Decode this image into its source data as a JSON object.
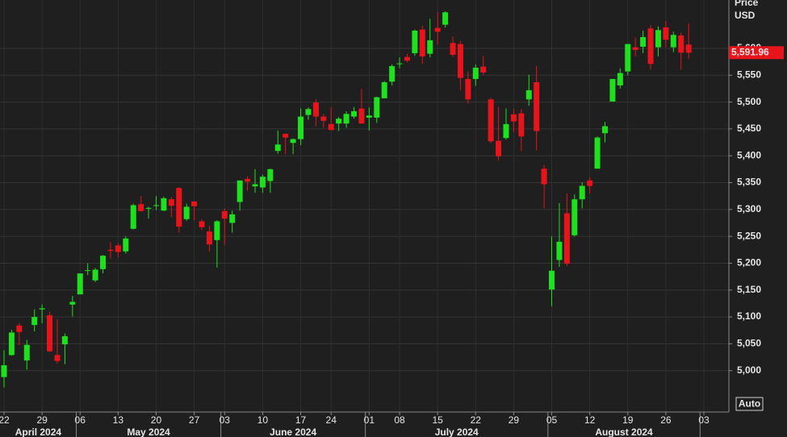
{
  "chart_data": {
    "type": "candlestick",
    "y_label": "Price",
    "y_unit": "USD",
    "categories": [
      "22",
      null,
      null,
      null,
      null,
      "29",
      null,
      null,
      null,
      null,
      "06",
      null,
      null,
      null,
      null,
      "13",
      null,
      null,
      null,
      null,
      "20",
      null,
      null,
      null,
      null,
      "27",
      null,
      null,
      null,
      "03",
      null,
      null,
      null,
      null,
      "10",
      null,
      null,
      null,
      null,
      "17",
      null,
      null,
      null,
      "24",
      null,
      null,
      null,
      null,
      "01",
      null,
      null,
      null,
      "08",
      null,
      null,
      null,
      null,
      "15",
      null,
      null,
      null,
      null,
      "22",
      null,
      null,
      null,
      null,
      "29",
      null,
      null,
      null,
      null,
      "05",
      null,
      null,
      null,
      null,
      "12",
      null,
      null,
      null,
      null,
      "19",
      null,
      null,
      null,
      null,
      "26",
      null,
      null,
      null,
      null,
      "03"
    ],
    "months": [
      "April 2024",
      "May 2024",
      "June 2024",
      "July 2024",
      "August 2024"
    ],
    "open": [
      4988,
      5029,
      5084,
      5019,
      5085,
      5114,
      5103,
      5029,
      5049,
      5123,
      5142,
      5187,
      5168,
      5189,
      5225,
      5233,
      5222,
      5264,
      5310,
      5303,
      5308,
      5298,
      5319,
      5340,
      5282,
      5315,
      5278,
      5259,
      5243,
      5297,
      5275,
      5314,
      5357,
      5343,
      5341,
      5353,
      5409,
      5441,
      5424,
      5431,
      5476,
      5499,
      5473,
      5459,
      5460,
      5460,
      5473,
      5488,
      5471,
      5471,
      5507,
      5538,
      5572,
      5584,
      5591,
      5635,
      5590,
      5638,
      5644,
      5610,
      5608,
      5543,
      5543,
      5566,
      5505,
      5428,
      5433,
      5477,
      5479,
      5505,
      5537,
      5376,
      5151,
      5206,
      5293,
      5252,
      5319,
      5354,
      5376,
      5442,
      5501,
      5531,
      5557,
      5602,
      5603,
      5637,
      5602,
      5639,
      5602,
      5624,
      5607,
      null,
      null
    ],
    "high": [
      5038,
      5076,
      5089,
      5057,
      5114,
      5123,
      5110,
      5096,
      5069,
      5139,
      5181,
      5200,
      5191,
      5215,
      5239,
      5237,
      5250,
      5311,
      5325,
      5305,
      5325,
      5324,
      5323,
      5342,
      5311,
      5315,
      5282,
      5270,
      5280,
      5302,
      5298,
      5354,
      5362,
      5375,
      5365,
      5376,
      5447,
      5441,
      5432,
      5488,
      5490,
      5505,
      5478,
      5490,
      5472,
      5483,
      5491,
      5524,
      5490,
      5510,
      5539,
      5570,
      5583,
      5590,
      5635,
      5642,
      5655,
      5667,
      5669,
      5622,
      5614,
      5557,
      5570,
      5586,
      5508,
      5491,
      5488,
      5487,
      5487,
      5551,
      5567,
      5383,
      5250,
      5312,
      5330,
      5328,
      5351,
      5360,
      5436,
      5463,
      5543,
      5563,
      5608,
      5620,
      5633,
      5643,
      5641,
      5651,
      5631,
      5629,
      5646,
      null,
      null
    ],
    "low": [
      4969,
      5028,
      5047,
      5002,
      5073,
      5088,
      5035,
      5013,
      5012,
      5101,
      5142,
      5178,
      5165,
      5181,
      5209,
      5211,
      5218,
      5263,
      5296,
      5283,
      5299,
      5297,
      5286,
      5257,
      5279,
      5280,
      5262,
      5222,
      5192,
      5234,
      5257,
      5298,
      5335,
      5331,
      5331,
      5331,
      5404,
      5403,
      5403,
      5420,
      5467,
      5455,
      5452,
      5447,
      5446,
      5452,
      5469,
      5460,
      5447,
      5461,
      5507,
      5531,
      5563,
      5574,
      5586,
      5571,
      5583,
      5607,
      5639,
      5584,
      5522,
      5497,
      5530,
      5550,
      5424,
      5391,
      5430,
      5444,
      5409,
      5493,
      5410,
      5302,
      5120,
      5193,
      5195,
      5250,
      5302,
      5330,
      5376,
      5425,
      5501,
      5525,
      5550,
      5585,
      5591,
      5560,
      5585,
      5602,
      5593,
      5560,
      5581,
      null,
      null
    ],
    "close": [
      5010,
      5071,
      5072,
      5048,
      5100,
      5116,
      5036,
      5018,
      5064,
      5128,
      5181,
      5187,
      5188,
      5214,
      5223,
      5221,
      5246,
      5308,
      5297,
      5303,
      5308,
      5321,
      5307,
      5268,
      5305,
      5306,
      5267,
      5235,
      5278,
      5283,
      5291,
      5354,
      5352,
      5347,
      5361,
      5375,
      5421,
      5434,
      5431,
      5473,
      5487,
      5473,
      5465,
      5448,
      5469,
      5478,
      5483,
      5460,
      5475,
      5509,
      5537,
      5567,
      5572,
      5577,
      5633,
      5585,
      5615,
      5631,
      5667,
      5588,
      5545,
      5505,
      5564,
      5555,
      5427,
      5399,
      5459,
      5464,
      5436,
      5522,
      5446,
      5347,
      5186,
      5240,
      5199,
      5319,
      5344,
      5344,
      5434,
      5455,
      5543,
      5554,
      5608,
      5597,
      5621,
      5571,
      5634,
      5616,
      5625,
      5592,
      5591.96,
      null,
      null
    ],
    "last_value_label": "5,591.96",
    "colors": {
      "up": "#1fe01f",
      "down": "#e8141c"
    },
    "ylim": [
      4923,
      5690
    ],
    "yticks": [
      {
        "value": 5000,
        "label": "5,000"
      },
      {
        "value": 5050,
        "label": "5,050"
      },
      {
        "value": 5100,
        "label": "5,100"
      },
      {
        "value": 5150,
        "label": "5,150"
      },
      {
        "value": 5200,
        "label": "5,200"
      },
      {
        "value": 5250,
        "label": "5,250"
      },
      {
        "value": 5300,
        "label": "5,300"
      },
      {
        "value": 5350,
        "label": "5,350"
      },
      {
        "value": 5400,
        "label": "5,400"
      },
      {
        "value": 5450,
        "label": "5,450"
      },
      {
        "value": 5500,
        "label": "5,500"
      },
      {
        "value": 5550,
        "label": "5,550"
      },
      {
        "value": 5600,
        "label": "5,600"
      }
    ],
    "grid": true
  },
  "controls": {
    "auto": "Auto"
  }
}
